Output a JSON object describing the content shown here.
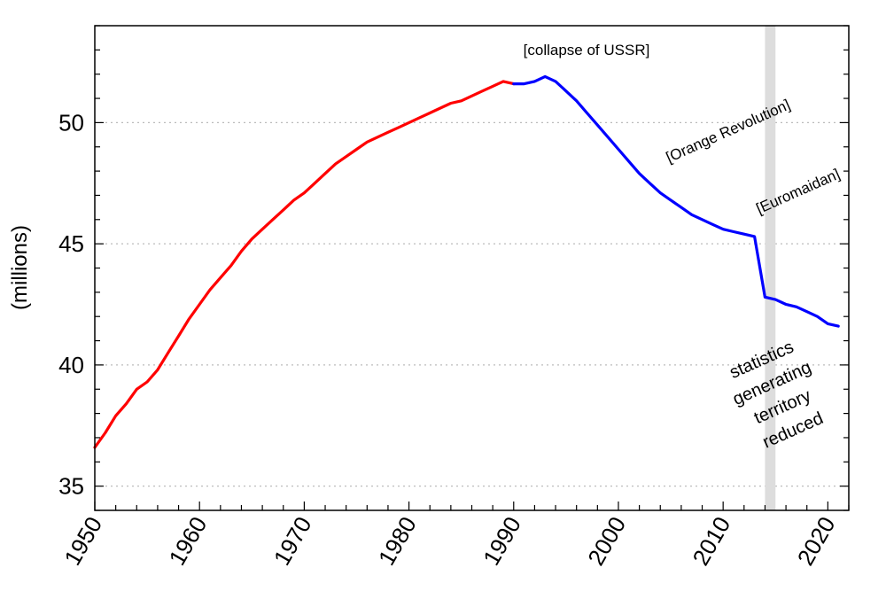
{
  "chart_data": {
    "type": "line",
    "title": "",
    "xlabel": "",
    "ylabel": "(millions)",
    "xlim": [
      1950,
      2022
    ],
    "ylim": [
      34.0,
      54.0
    ],
    "grid": "horizontal dotted",
    "yticks": [
      35,
      40,
      45,
      50
    ],
    "xticks": [
      1950,
      1960,
      1970,
      1980,
      1990,
      2000,
      2010,
      2020
    ],
    "colors": {
      "soviet": "#ff0000",
      "independent": "#0000ff",
      "band": "#dddddd",
      "grid": "#bbbbbb"
    },
    "highlight_band": {
      "x_start": 2014.0,
      "x_end": 2015.0
    },
    "series": [
      {
        "color": "#ff0000",
        "x": [
          1950,
          1951,
          1952,
          1953,
          1954,
          1955,
          1956,
          1957,
          1958,
          1959,
          1960,
          1961,
          1962,
          1963,
          1964,
          1965,
          1966,
          1967,
          1968,
          1969,
          1970,
          1971,
          1972,
          1973,
          1974,
          1975,
          1976,
          1977,
          1978,
          1979,
          1980,
          1981,
          1982,
          1983,
          1984,
          1985,
          1986,
          1987,
          1988,
          1989,
          1990
        ],
        "values": [
          36.6,
          37.2,
          37.9,
          38.4,
          39.0,
          39.3,
          39.8,
          40.5,
          41.2,
          41.9,
          42.5,
          43.1,
          43.6,
          44.1,
          44.7,
          45.2,
          45.6,
          46.0,
          46.4,
          46.8,
          47.1,
          47.5,
          47.9,
          48.3,
          48.6,
          48.9,
          49.2,
          49.4,
          49.6,
          49.8,
          50.0,
          50.2,
          50.4,
          50.6,
          50.8,
          50.9,
          51.1,
          51.3,
          51.5,
          51.7,
          51.6
        ]
      },
      {
        "color": "#0000ff",
        "x": [
          1990,
          1991,
          1992,
          1993,
          1994,
          1995,
          1996,
          1997,
          1998,
          1999,
          2000,
          2001,
          2002,
          2003,
          2004,
          2005,
          2006,
          2007,
          2008,
          2009,
          2010,
          2011,
          2012,
          2013,
          2014,
          2015,
          2016,
          2017,
          2018,
          2019,
          2020,
          2021
        ],
        "values": [
          51.6,
          51.6,
          51.7,
          51.9,
          51.7,
          51.3,
          50.9,
          50.4,
          49.9,
          49.4,
          48.9,
          48.4,
          47.9,
          47.5,
          47.1,
          46.8,
          46.5,
          46.2,
          46.0,
          45.8,
          45.6,
          45.5,
          45.4,
          45.3,
          42.8,
          42.7,
          42.5,
          42.4,
          42.2,
          42.0,
          41.7,
          41.6
        ]
      }
    ],
    "annotations": {
      "collapse": "[collapse of USSR]",
      "orange": "[Orange Revolution]",
      "euromaidan": "[Euromaidan]",
      "territory": [
        "statistics",
        "generating",
        "territory",
        "reduced"
      ]
    }
  }
}
